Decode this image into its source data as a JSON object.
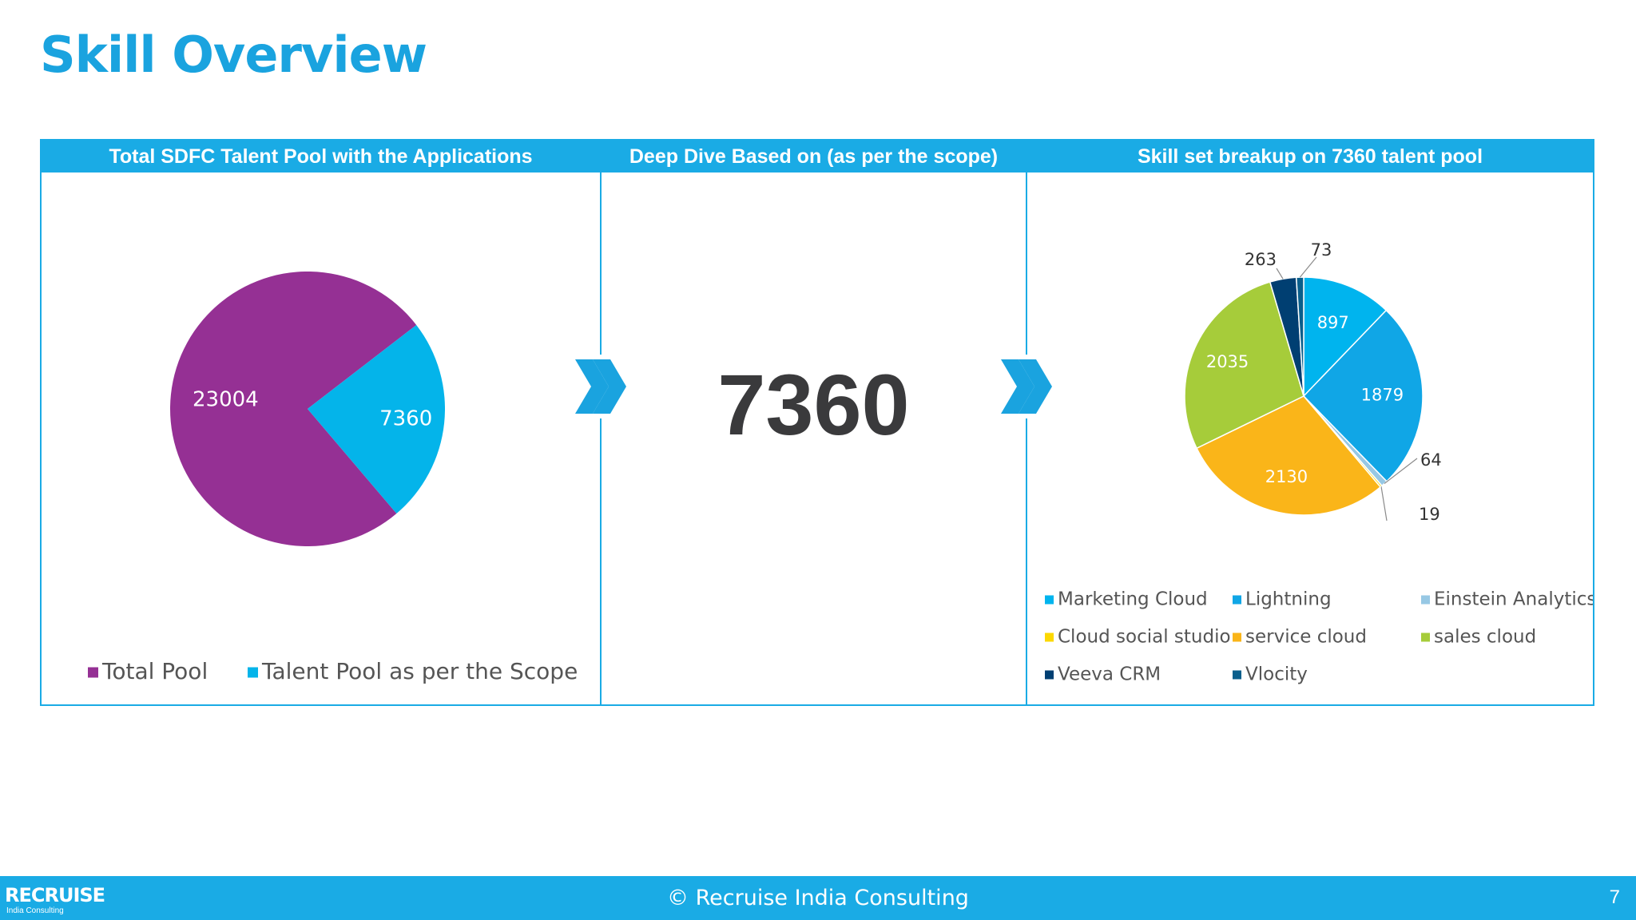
{
  "slide": {
    "title": "Skill Overview"
  },
  "panels": {
    "pool": {
      "header": "Total SDFC Talent Pool with the Applications"
    },
    "deep_dive": {
      "header": "Deep Dive Based on (as per the scope)",
      "value": "7360"
    },
    "skills": {
      "header": "Skill set breakup on 7360 talent pool"
    }
  },
  "chart_data": [
    {
      "type": "pie",
      "legend_position": "bottom",
      "categories": [
        "Total Pool",
        "Talent Pool as per the Scope"
      ],
      "values": [
        23004,
        7360
      ],
      "colors": [
        "#953094",
        "#04b4ea"
      ],
      "data_labels": [
        "23004",
        "7360"
      ]
    },
    {
      "type": "pie",
      "title": "Skill set breakup on 7360 talent pool",
      "legend_position": "bottom",
      "categories": [
        "Marketing Cloud",
        "Lightning",
        "Einstein Analytics",
        "Cloud social studio",
        "service cloud",
        "sales cloud",
        "Veeva CRM",
        "Vlocity"
      ],
      "values": [
        897,
        1879,
        64,
        19,
        2130,
        2035,
        263,
        73
      ],
      "colors": [
        "#00b4ee",
        "#10a6e6",
        "#97c8e4",
        "#fcd800",
        "#fab519",
        "#a6cc3a",
        "#003f72",
        "#0a5f8c"
      ],
      "data_labels": [
        "897",
        "1879",
        "64",
        "19",
        "2130",
        "2035",
        "263",
        "73"
      ]
    }
  ],
  "footer": {
    "logo_text": "RECRUISE",
    "logo_subtext": "India Consulting",
    "copyright": "© Recruise India Consulting",
    "page_number": "7"
  },
  "icons": [
    "chevron-right-icon",
    "chevron-right-icon"
  ]
}
